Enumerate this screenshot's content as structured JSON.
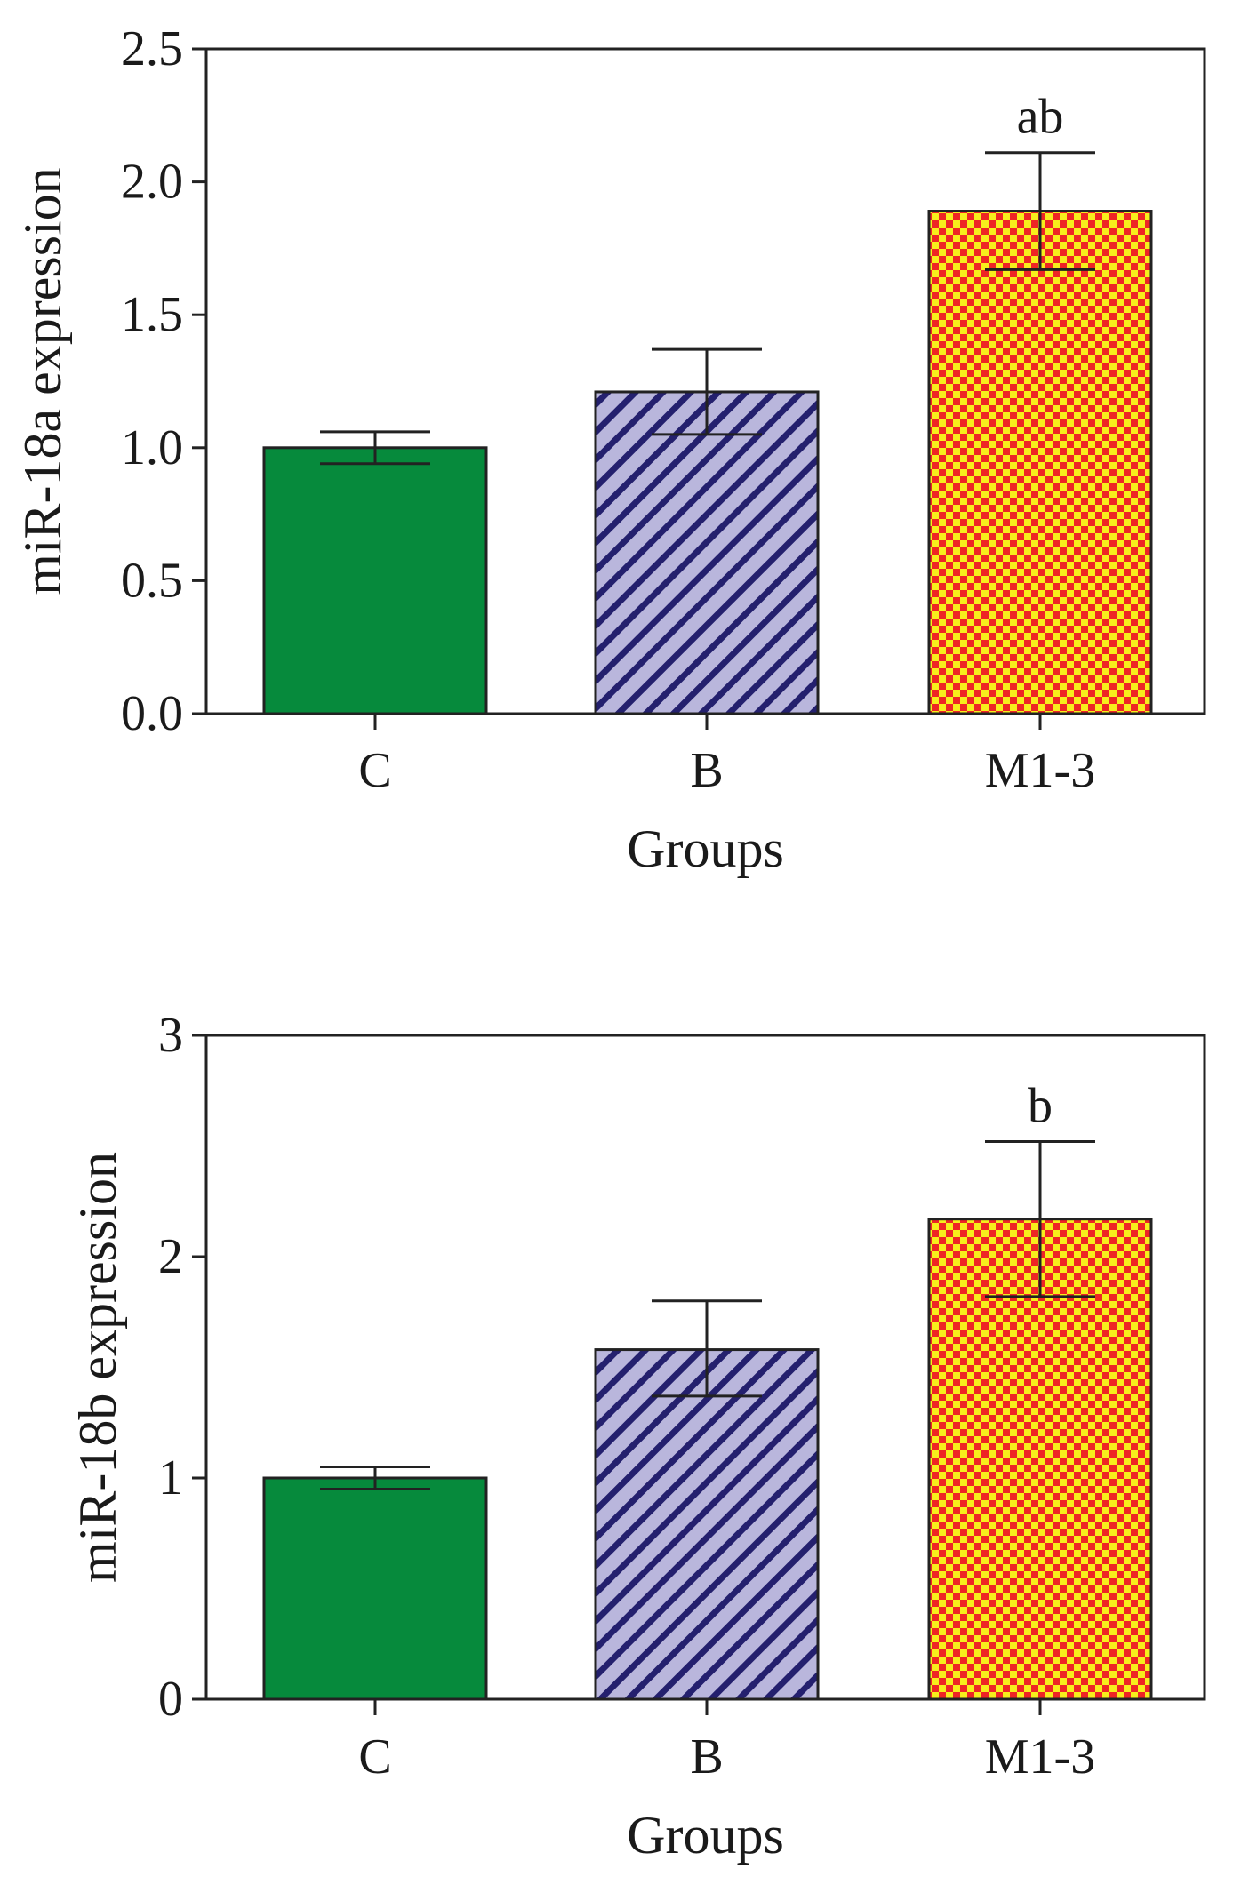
{
  "chart_data": [
    {
      "type": "bar",
      "ylabel": "miR-18a expression",
      "xlabel": "Groups",
      "categories": [
        "C",
        "B",
        "M1-3"
      ],
      "values": [
        1.0,
        1.21,
        1.89
      ],
      "error_upper": [
        1.06,
        1.37,
        2.11
      ],
      "error_lower": [
        0.94,
        1.05,
        1.67
      ],
      "annotations": [
        "",
        "",
        "ab"
      ],
      "ylim": [
        0,
        2.5
      ],
      "yticks": [
        0.0,
        0.5,
        1.0,
        1.5,
        2.0,
        2.5
      ],
      "ytick_labels": [
        "0.0",
        "0.5",
        "1.0",
        "1.5",
        "2.0",
        "2.5"
      ],
      "grid": false
    },
    {
      "type": "bar",
      "ylabel": "miR-18b expression",
      "xlabel": "Groups",
      "categories": [
        "C",
        "B",
        "M1-3"
      ],
      "values": [
        1.0,
        1.58,
        2.17
      ],
      "error_upper": [
        1.05,
        1.8,
        2.52
      ],
      "error_lower": [
        0.95,
        1.37,
        1.82
      ],
      "annotations": [
        "",
        "",
        "b"
      ],
      "ylim": [
        0,
        3
      ],
      "yticks": [
        0,
        1,
        2,
        3
      ],
      "ytick_labels": [
        "0",
        "1",
        "2",
        "3"
      ],
      "grid": false
    }
  ],
  "style": {
    "green": "#068a3c",
    "navy": "#24206e",
    "stripe": "#b9b6dc",
    "red": "#ee2525",
    "yellow": "#f7ee1c",
    "axis": "#222222"
  }
}
